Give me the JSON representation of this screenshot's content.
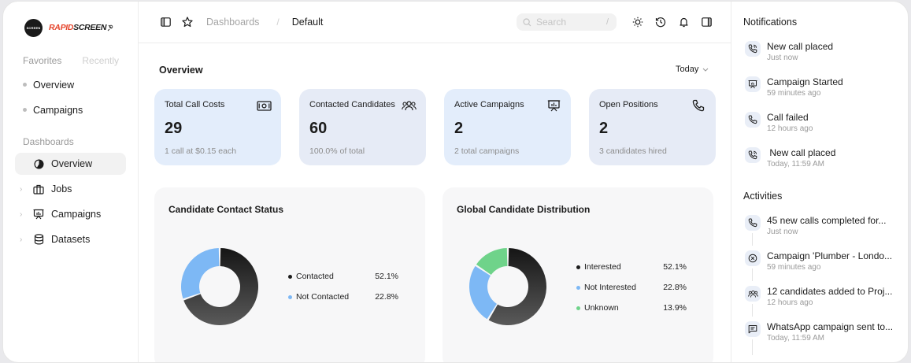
{
  "brand": {
    "circle_text": "SCREEN",
    "word_part1": "RAPID",
    "word_part2": "SCREEN"
  },
  "sidebar": {
    "favorites_tab": "Favorites",
    "recently_tab": "Recently",
    "favorites": [
      {
        "label": "Overview"
      },
      {
        "label": "Campaigns"
      }
    ],
    "section_title": "Dashboards",
    "nav": [
      {
        "label": "Overview",
        "icon": "pie-chart-icon",
        "active": true
      },
      {
        "label": "Jobs",
        "icon": "briefcase-icon",
        "active": false
      },
      {
        "label": "Campaigns",
        "icon": "presentation-icon",
        "active": false
      },
      {
        "label": "Datasets",
        "icon": "database-icon",
        "active": false
      }
    ]
  },
  "topbar": {
    "breadcrumb_1": "Dashboards",
    "breadcrumb_sep": "/",
    "breadcrumb_2": "Default",
    "search_placeholder": "Search",
    "search_shortcut": "/"
  },
  "overview": {
    "title": "Overview",
    "period": "Today"
  },
  "cards": [
    {
      "title": "Total Call Costs",
      "value": "29",
      "sub": "1 call at $0.15 each",
      "icon": "money-icon",
      "bg": "#e3edfb"
    },
    {
      "title": "Contacted Candidates",
      "value": "60",
      "sub": "100.0% of total",
      "icon": "users-icon",
      "bg": "#e6ebf6"
    },
    {
      "title": "Active Campaigns",
      "value": "2",
      "sub": "2 total campaigns",
      "icon": "presentation-icon",
      "bg": "#e3edfb"
    },
    {
      "title": "Open Positions",
      "value": "2",
      "sub": "3 candidates hired",
      "icon": "phone-icon",
      "bg": "#e6ebf6"
    }
  ],
  "chart_data": [
    {
      "type": "pie",
      "title": "Candidate Contact Status",
      "categories": [
        "Contacted",
        "Not Contacted"
      ],
      "values": [
        52.1,
        22.8
      ],
      "labels": [
        "52.1%",
        "22.8%"
      ],
      "colors": [
        "#1c1c1c",
        "#7db8f5"
      ]
    },
    {
      "type": "pie",
      "title": "Global Candidate Distribution",
      "categories": [
        "Interested",
        "Not Interested",
        "Unknown"
      ],
      "values": [
        52.1,
        22.8,
        13.9
      ],
      "labels": [
        "52.1%",
        "22.8%",
        "13.9%"
      ],
      "colors": [
        "#1c1c1c",
        "#7db8f5",
        "#6fd38a"
      ]
    }
  ],
  "notifications": {
    "title": "Notifications",
    "items": [
      {
        "text": "New call placed",
        "time": "Just now",
        "icon": "phone-call-icon"
      },
      {
        "text": "Campaign Started",
        "time": "59 minutes ago",
        "icon": "presentation-icon"
      },
      {
        "text": "Call failed",
        "time": "12 hours ago",
        "icon": "phone-icon"
      },
      {
        "text": " New call placed",
        "time": "Today, 11:59 AM",
        "icon": "phone-call-icon"
      }
    ]
  },
  "activities": {
    "title": "Activities",
    "items": [
      {
        "text": "45 new calls completed for...",
        "time": "Just now",
        "icon": "phone-icon"
      },
      {
        "text": "Campaign 'Plumber - Londo...",
        "time": "59 minutes ago",
        "icon": "x-circle-icon"
      },
      {
        "text": "12 candidates added to Proj...",
        "time": "12 hours ago",
        "icon": "users-icon"
      },
      {
        "text": "WhatsApp campaign sent to...",
        "time": "Today, 11:59 AM",
        "icon": "message-icon"
      }
    ]
  }
}
